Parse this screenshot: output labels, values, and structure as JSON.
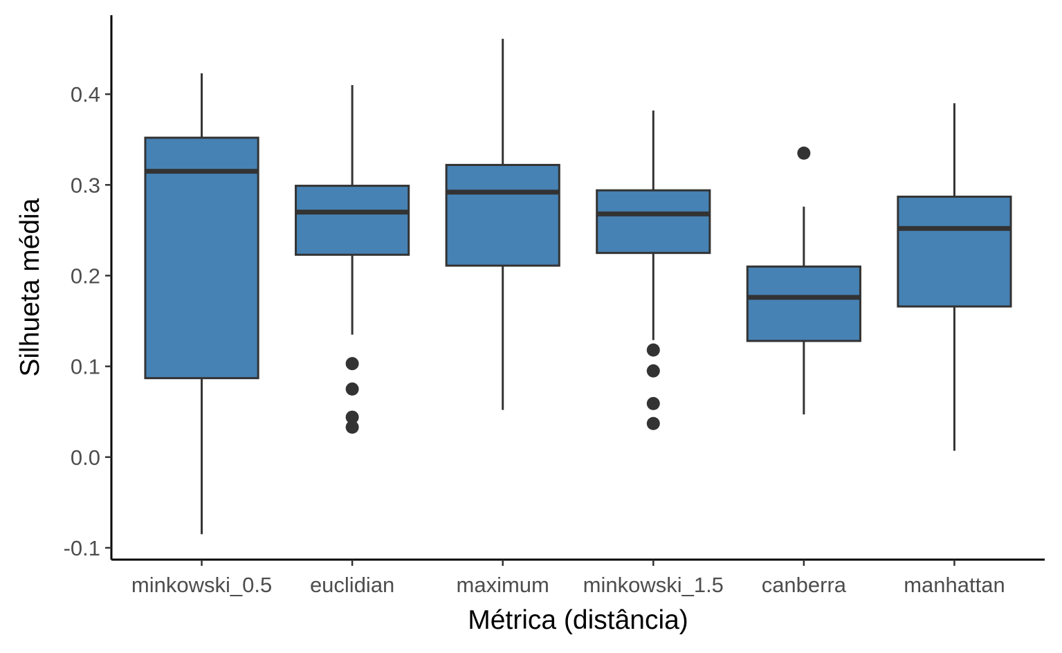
{
  "chart_data": {
    "type": "boxplot",
    "xlabel": "Métrica (distância)",
    "ylabel": "Silhueta média",
    "ylim": [
      -0.113,
      0.487
    ],
    "yticks": [
      -0.1,
      0.0,
      0.1,
      0.2,
      0.3,
      0.4
    ],
    "ytick_labels": [
      "-0.1",
      "0.0",
      "0.1",
      "0.2",
      "0.3",
      "0.4"
    ],
    "grid": false,
    "legend": "none",
    "box_color": "#4682B4",
    "line_color": "#333333",
    "categories": [
      "minkowski_0.5",
      "euclidian",
      "maximum",
      "minkowski_1.5",
      "canberra",
      "manhattan"
    ],
    "boxes": [
      {
        "category": "minkowski_0.5",
        "whisker_low": -0.085,
        "q1": 0.087,
        "median": 0.315,
        "q3": 0.352,
        "whisker_high": 0.423,
        "outliers": []
      },
      {
        "category": "euclidian",
        "whisker_low": 0.135,
        "q1": 0.223,
        "median": 0.27,
        "q3": 0.299,
        "whisker_high": 0.41,
        "outliers": [
          0.103,
          0.075,
          0.044,
          0.033
        ]
      },
      {
        "category": "maximum",
        "whisker_low": 0.052,
        "q1": 0.211,
        "median": 0.292,
        "q3": 0.322,
        "whisker_high": 0.461,
        "outliers": []
      },
      {
        "category": "minkowski_1.5",
        "whisker_low": 0.129,
        "q1": 0.225,
        "median": 0.268,
        "q3": 0.294,
        "whisker_high": 0.382,
        "outliers": [
          0.118,
          0.095,
          0.059,
          0.037
        ]
      },
      {
        "category": "canberra",
        "whisker_low": 0.047,
        "q1": 0.128,
        "median": 0.176,
        "q3": 0.21,
        "whisker_high": 0.276,
        "outliers": [
          0.335
        ]
      },
      {
        "category": "manhattan",
        "whisker_low": 0.007,
        "q1": 0.166,
        "median": 0.252,
        "q3": 0.287,
        "whisker_high": 0.39,
        "outliers": []
      }
    ]
  }
}
